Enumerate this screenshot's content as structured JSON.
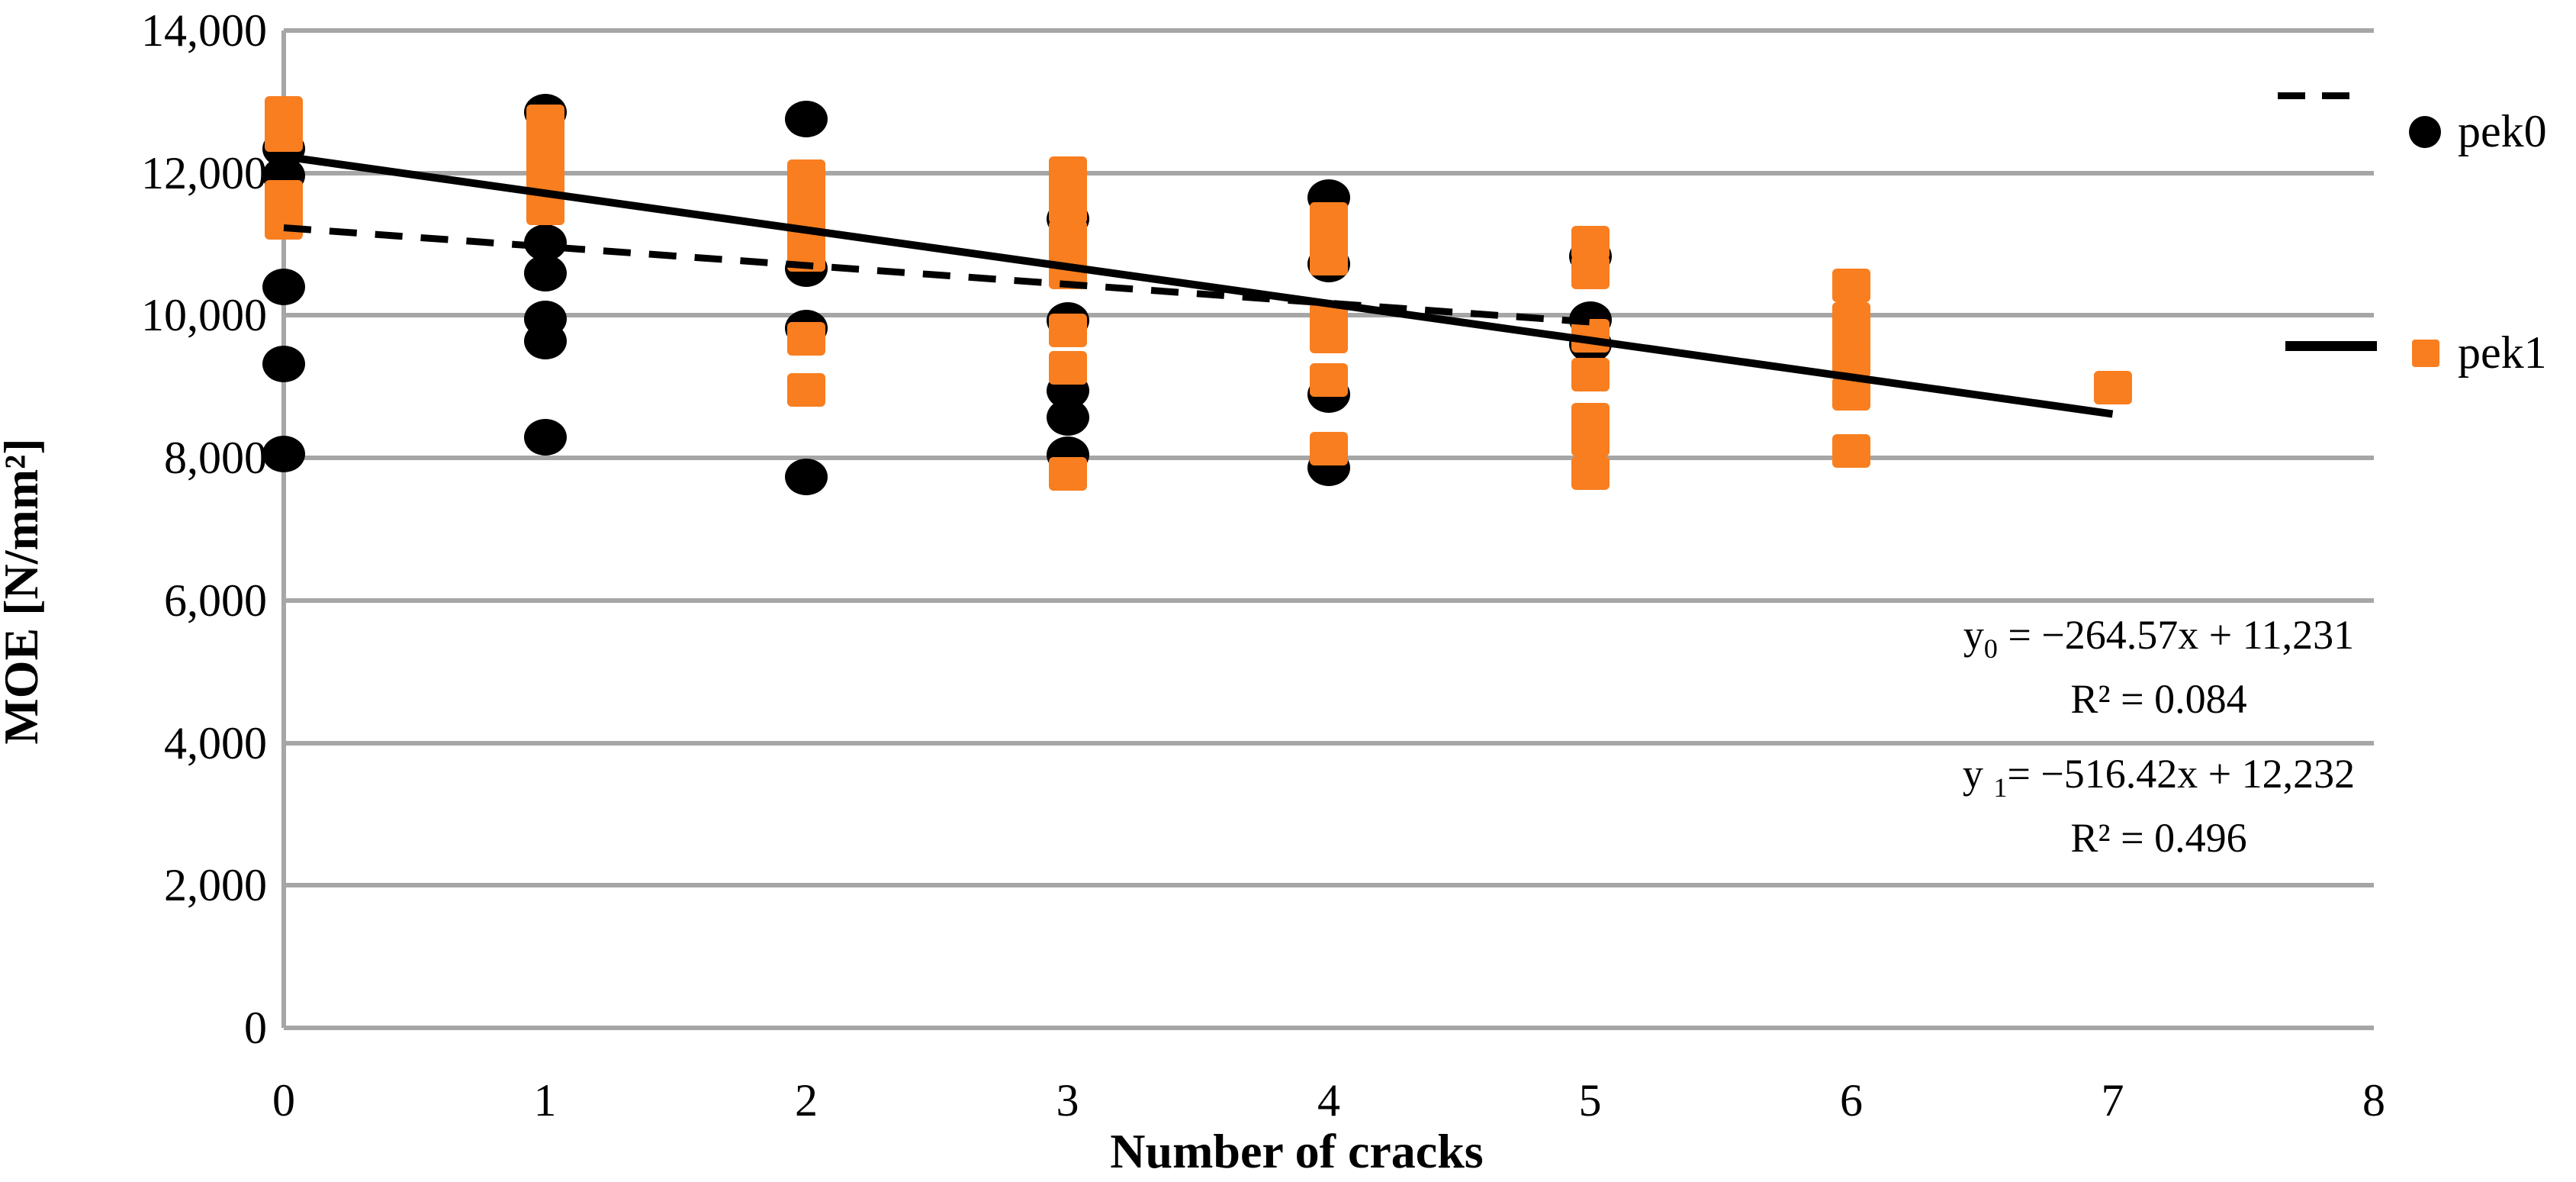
{
  "chart_data": {
    "type": "scatter",
    "title": "",
    "xlabel": "Number of cracks",
    "ylabel": "MOE [N/mm²]",
    "xlim": [
      0,
      8
    ],
    "ylim": [
      0,
      14000
    ],
    "x_ticks": [
      "0",
      "1",
      "2",
      "3",
      "4",
      "5",
      "6",
      "7",
      "8"
    ],
    "x_tick_values": [
      0,
      1,
      2,
      3,
      4,
      5,
      6,
      7,
      8
    ],
    "y_ticks": [
      "14,000",
      "12,000",
      "10,000",
      "8,000",
      "6,000",
      "4,000",
      "2,000",
      "0"
    ],
    "y_tick_values": [
      14000,
      12000,
      10000,
      8000,
      6000,
      4000,
      2000,
      0
    ],
    "grid": "horizontal",
    "gridline_color": "#a6a6a6",
    "legend_position": "right",
    "series": [
      {
        "name": "pek0",
        "marker": "circle",
        "color": "#000000",
        "points": [
          [
            0,
            12340
          ],
          [
            0,
            11960
          ],
          [
            0,
            10400
          ],
          [
            0,
            9320
          ],
          [
            0,
            8060
          ],
          [
            1,
            12850
          ],
          [
            1,
            11020
          ],
          [
            1,
            10590
          ],
          [
            1,
            9950
          ],
          [
            1,
            9640
          ],
          [
            1,
            8290
          ],
          [
            2,
            12760
          ],
          [
            2,
            10660
          ],
          [
            2,
            9820
          ],
          [
            2,
            7730
          ],
          [
            3,
            11350
          ],
          [
            3,
            9930
          ],
          [
            3,
            8940
          ],
          [
            3,
            8570
          ],
          [
            3,
            8040
          ],
          [
            4,
            11650
          ],
          [
            4,
            10720
          ],
          [
            4,
            8890
          ],
          [
            4,
            7860
          ],
          [
            5,
            10830
          ],
          [
            5,
            9940
          ],
          [
            5,
            9600
          ]
        ],
        "trendline": {
          "style": "dashed",
          "slope": -264.57,
          "intercept": 11231,
          "x_start": 0,
          "x_end": 5,
          "equation_pre": "y",
          "equation_sub": "0",
          "equation_post": " = −264.57x + 11,231",
          "r_squared": "R² = 0.084"
        }
      },
      {
        "name": "pek1",
        "marker": "square",
        "color": "#f87e20",
        "points": [
          [
            0,
            12840
          ],
          [
            0,
            12530
          ],
          [
            0,
            11660
          ],
          [
            0,
            11300
          ],
          [
            1,
            12730
          ],
          [
            1,
            12420
          ],
          [
            1,
            12110
          ],
          [
            1,
            11800
          ],
          [
            1,
            11500
          ],
          [
            2,
            11950
          ],
          [
            2,
            11650
          ],
          [
            2,
            11350
          ],
          [
            2,
            11050
          ],
          [
            2,
            10850
          ],
          [
            2,
            9670
          ],
          [
            2,
            8950
          ],
          [
            3,
            12000
          ],
          [
            3,
            11750
          ],
          [
            3,
            11530
          ],
          [
            3,
            11100
          ],
          [
            3,
            10800
          ],
          [
            3,
            10600
          ],
          [
            3,
            9790
          ],
          [
            3,
            9270
          ],
          [
            3,
            7780
          ],
          [
            4,
            11350
          ],
          [
            4,
            11050
          ],
          [
            4,
            10800
          ],
          [
            4,
            9950
          ],
          [
            4,
            9700
          ],
          [
            4,
            9090
          ],
          [
            4,
            8130
          ],
          [
            5,
            11025
          ],
          [
            5,
            10600
          ],
          [
            5,
            9715
          ],
          [
            5,
            9165
          ],
          [
            5,
            8540
          ],
          [
            5,
            8260
          ],
          [
            5,
            7790
          ],
          [
            6,
            10420
          ],
          [
            6,
            9950
          ],
          [
            6,
            9740
          ],
          [
            6,
            9365
          ],
          [
            6,
            8905
          ],
          [
            6,
            8100
          ],
          [
            7,
            8990
          ]
        ],
        "trendline": {
          "style": "solid",
          "slope": -516.42,
          "intercept": 12232,
          "x_start": 0,
          "x_end": 7,
          "equation_pre": "y ",
          "equation_sub": "1",
          "equation_post": "= −516.42x + 12,232",
          "r_squared": "R² = 0.496"
        }
      }
    ]
  },
  "legend": {
    "pek0_label": "pek0",
    "pek1_label": "pek1"
  },
  "equations": {
    "line1_pre": "y",
    "line1_sub": "0",
    "line1_post": " = −264.57x + 11,231",
    "line2": "R² = 0.084",
    "line3_pre": "y ",
    "line3_sub": "1",
    "line3_post": "= −516.42x + 12,232",
    "line4": "R² = 0.496"
  }
}
